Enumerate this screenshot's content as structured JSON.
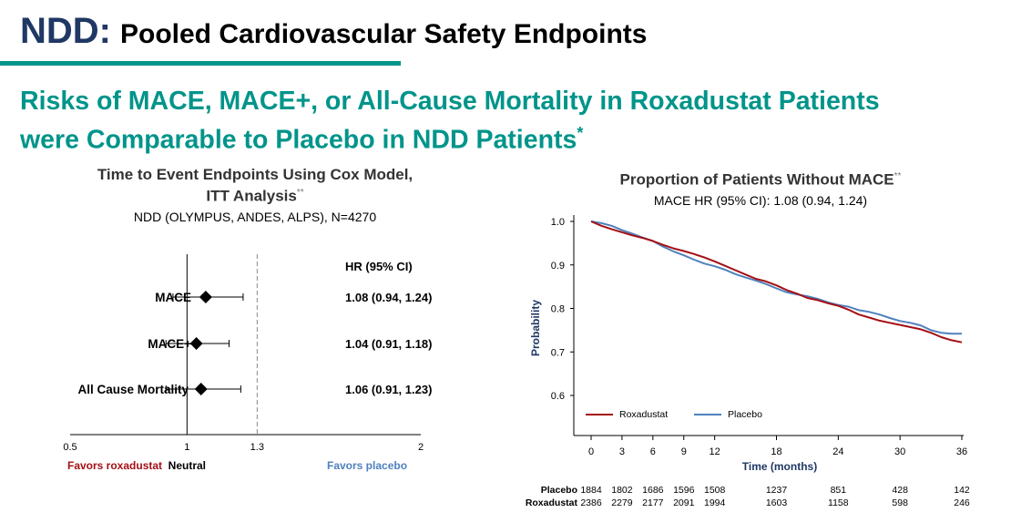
{
  "header": {
    "ndd": "NDD",
    "colon": ":",
    "title": "Pooled Cardiovascular Safety Endpoints"
  },
  "subtitle": {
    "line1": "Risks of MACE, MACE+, or All-Cause Mortality in Roxadustat Patients",
    "line2": "were Comparable to Placebo in NDD Patients",
    "mark": "*"
  },
  "colors": {
    "accent": "#00948a",
    "navy": "#1f3864",
    "roxadustat": "#a50f15",
    "placebo": "#4f81bd"
  },
  "chart_data": [
    {
      "type": "forest",
      "title_line1": "Time to Event Endpoints Using Cox Model,",
      "title_line2": "ITT Analysis",
      "title_mark": "**",
      "subtitle": "NDD (OLYMPUS, ANDES, ALPS), N=4270",
      "column_header": "HR (95% CI)",
      "x_ticks": [
        "0.5",
        "1",
        "1.3",
        "2"
      ],
      "xlim": [
        0.5,
        2
      ],
      "reference_line": 1,
      "dashed_line": 1.3,
      "rows": [
        {
          "label": "MACE",
          "hr": 1.08,
          "lo": 0.94,
          "hi": 1.24,
          "text": "1.08 (0.94, 1.24)"
        },
        {
          "label": "MACE+",
          "hr": 1.04,
          "lo": 0.91,
          "hi": 1.18,
          "text": "1.04 (0.91, 1.18)"
        },
        {
          "label": "All Cause Mortality",
          "hr": 1.06,
          "lo": 0.91,
          "hi": 1.23,
          "text": "1.06 (0.91, 1.23)"
        }
      ],
      "favors_left": "Favors roxadustat",
      "neutral": "Neutral",
      "favors_right": "Favors placebo"
    },
    {
      "type": "line",
      "title": "Proportion of Patients Without MACE",
      "title_mark": "**",
      "subtitle": "MACE HR (95% CI): 1.08 (0.94, 1.24)",
      "xlabel": "Time (months)",
      "ylabel": "Probability",
      "xlim": [
        0,
        36
      ],
      "ylim": [
        0.6,
        1.0
      ],
      "x_ticks": [
        "0",
        "3",
        "6",
        "9",
        "12",
        "18",
        "24",
        "30",
        "36"
      ],
      "y_ticks": [
        "1.0",
        "0.9",
        "0.8",
        "0.7",
        "0.6"
      ],
      "legend": "bottom-left",
      "series": [
        {
          "name": "Roxadustat",
          "points": [
            [
              0,
              1.0
            ],
            [
              1,
              0.99
            ],
            [
              2,
              0.982
            ],
            [
              3,
              0.975
            ],
            [
              4,
              0.968
            ],
            [
              5,
              0.962
            ],
            [
              6,
              0.955
            ],
            [
              7,
              0.946
            ],
            [
              8,
              0.938
            ],
            [
              9,
              0.932
            ],
            [
              10,
              0.925
            ],
            [
              11,
              0.917
            ],
            [
              12,
              0.908
            ],
            [
              13,
              0.898
            ],
            [
              14,
              0.888
            ],
            [
              15,
              0.878
            ],
            [
              16,
              0.868
            ],
            [
              17,
              0.862
            ],
            [
              18,
              0.853
            ],
            [
              19,
              0.842
            ],
            [
              20,
              0.834
            ],
            [
              21,
              0.824
            ],
            [
              22,
              0.819
            ],
            [
              23,
              0.812
            ],
            [
              24,
              0.806
            ],
            [
              25,
              0.797
            ],
            [
              26,
              0.786
            ],
            [
              27,
              0.779
            ],
            [
              28,
              0.772
            ],
            [
              29,
              0.767
            ],
            [
              30,
              0.762
            ],
            [
              31,
              0.757
            ],
            [
              32,
              0.752
            ],
            [
              33,
              0.744
            ],
            [
              34,
              0.734
            ],
            [
              35,
              0.727
            ],
            [
              36,
              0.722
            ]
          ]
        },
        {
          "name": "Placebo",
          "points": [
            [
              0,
              1.0
            ],
            [
              1,
              0.996
            ],
            [
              2,
              0.99
            ],
            [
              3,
              0.98
            ],
            [
              4,
              0.972
            ],
            [
              5,
              0.963
            ],
            [
              6,
              0.955
            ],
            [
              7,
              0.942
            ],
            [
              8,
              0.931
            ],
            [
              9,
              0.922
            ],
            [
              10,
              0.912
            ],
            [
              11,
              0.903
            ],
            [
              12,
              0.897
            ],
            [
              13,
              0.889
            ],
            [
              14,
              0.879
            ],
            [
              15,
              0.871
            ],
            [
              16,
              0.864
            ],
            [
              17,
              0.856
            ],
            [
              18,
              0.846
            ],
            [
              19,
              0.837
            ],
            [
              20,
              0.832
            ],
            [
              21,
              0.828
            ],
            [
              22,
              0.822
            ],
            [
              23,
              0.814
            ],
            [
              24,
              0.808
            ],
            [
              25,
              0.804
            ],
            [
              26,
              0.796
            ],
            [
              27,
              0.792
            ],
            [
              28,
              0.786
            ],
            [
              29,
              0.778
            ],
            [
              30,
              0.771
            ],
            [
              31,
              0.767
            ],
            [
              32,
              0.761
            ],
            [
              33,
              0.75
            ],
            [
              34,
              0.744
            ],
            [
              35,
              0.742
            ],
            [
              36,
              0.742
            ]
          ]
        }
      ],
      "at_risk": {
        "times": [
          0,
          3,
          6,
          9,
          12,
          18,
          24,
          30,
          36
        ],
        "rows": [
          {
            "label": "Placebo",
            "values": [
              1884,
              1802,
              1686,
              1596,
              1508,
              1237,
              851,
              428,
              142
            ]
          },
          {
            "label": "Roxadustat",
            "values": [
              2386,
              2279,
              2177,
              2091,
              1994,
              1603,
              1158,
              598,
              246
            ]
          }
        ]
      }
    }
  ]
}
